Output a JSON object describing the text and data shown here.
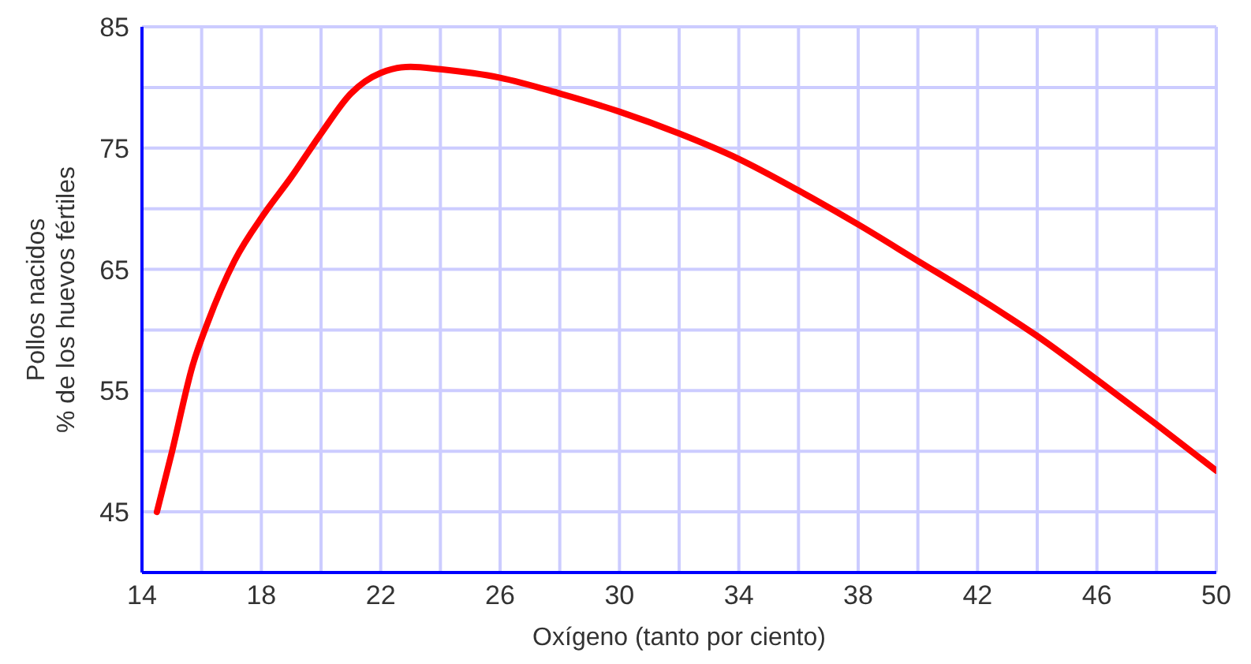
{
  "chart_data": {
    "type": "line",
    "xlabel": "Oxígeno (tanto por ciento)",
    "ylabel": "Pollos nacidos\n% de los huevos fértiles",
    "x": [
      14.5,
      15,
      15.7,
      16.2,
      17.1,
      18.1,
      19,
      20,
      21,
      22,
      23,
      24,
      26,
      28,
      30,
      32,
      34,
      36,
      38,
      40,
      42,
      44,
      46,
      48,
      50
    ],
    "series": [
      {
        "color": "#ff0000",
        "values": [
          45,
          49.9,
          57.1,
          60.6,
          65.7,
          69.6,
          72.6,
          76.2,
          79.5,
          81.2,
          81.7,
          81.5,
          80.8,
          79.5,
          78,
          76.2,
          74.1,
          71.5,
          68.7,
          65.7,
          62.7,
          59.5,
          55.9,
          52.2,
          48.4
        ]
      }
    ],
    "xlim": [
      14,
      50
    ],
    "ylim": [
      40,
      85
    ],
    "xticks": [
      14,
      {
        "value": 16,
        "label": null
      },
      18,
      {
        "value": 20,
        "label": null
      },
      22,
      {
        "value": 24,
        "label": null
      },
      26,
      {
        "value": 28,
        "label": null
      },
      30,
      {
        "value": 32,
        "label": null
      },
      34,
      {
        "value": 36,
        "label": null
      },
      38,
      {
        "value": 40,
        "label": null
      },
      42,
      {
        "value": 44,
        "label": null
      },
      46,
      {
        "value": 48,
        "label": null
      },
      50
    ],
    "yticks": [
      45,
      {
        "value": 50,
        "label": null
      },
      55,
      {
        "value": 60,
        "label": null
      },
      65,
      {
        "value": 70,
        "label": null
      },
      75,
      {
        "value": 80,
        "label": null
      },
      85
    ],
    "grid": true,
    "marker": "none",
    "line_style": "solid",
    "legend": false
  }
}
